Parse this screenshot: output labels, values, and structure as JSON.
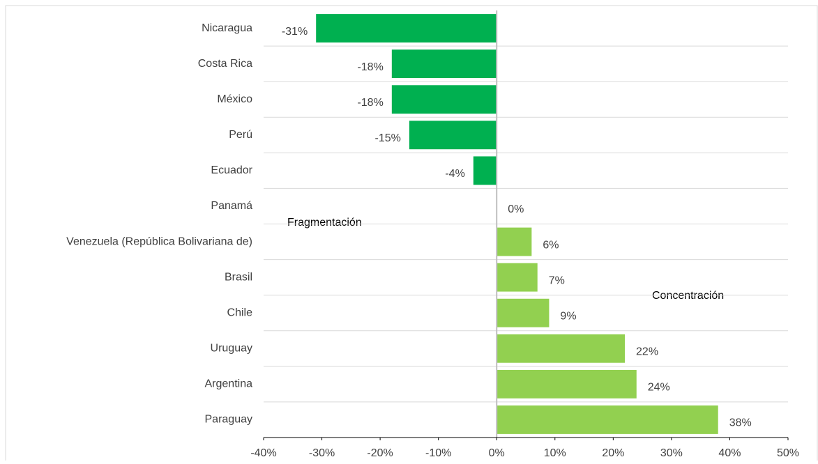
{
  "chart_data": {
    "type": "bar",
    "orientation": "horizontal",
    "categories": [
      "Nicaragua",
      "Costa Rica",
      "México",
      "Perú",
      "Ecuador",
      "Panamá",
      "Venezuela (República Bolivariana de)",
      "Brasil",
      "Chile",
      "Uruguay",
      "Argentina",
      "Paraguay"
    ],
    "values": [
      -31,
      -18,
      -18,
      -15,
      -4,
      0,
      6,
      7,
      9,
      22,
      24,
      38
    ],
    "value_labels": [
      "-31%",
      "-18%",
      "-18%",
      "-15%",
      "-4%",
      "0%",
      "6%",
      "7%",
      "9%",
      "22%",
      "24%",
      "38%"
    ],
    "negative_color": "#00b050",
    "positive_color": "#92d050",
    "xlim": [
      -40,
      50
    ],
    "xticks": [
      {
        "value": -40,
        "label": "-40%"
      },
      {
        "value": -30,
        "label": "-30%"
      },
      {
        "value": -20,
        "label": "-20%"
      },
      {
        "value": -10,
        "label": "-10%"
      },
      {
        "value": 0,
        "label": "0%"
      },
      {
        "value": 10,
        "label": "10%"
      },
      {
        "value": 20,
        "label": "20%"
      },
      {
        "value": 30,
        "label": "30%"
      },
      {
        "value": 40,
        "label": "40%"
      },
      {
        "value": 50,
        "label": "50%"
      }
    ],
    "grid": true,
    "annotations": [
      "Fragmentación",
      "Concentración"
    ]
  }
}
